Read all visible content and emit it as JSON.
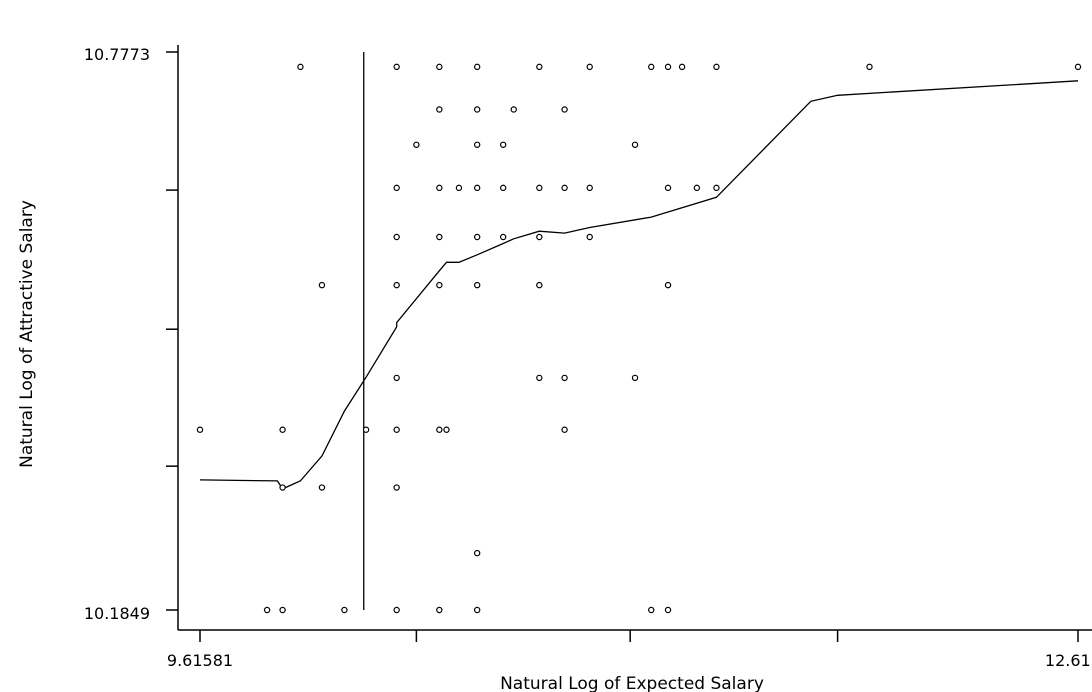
{
  "chart_data": {
    "type": "scatter",
    "title": "",
    "xlabel": "Natural Log of Expected Salary",
    "ylabel": "Natural Log of Attractive Salary",
    "xlim": [
      9.61581,
      12.6115
    ],
    "ylim": [
      10.1849,
      10.7773
    ],
    "x_tick_labels": [
      "9.61581",
      "12.6115"
    ],
    "y_tick_labels": [
      "10.7773",
      "10.1849"
    ],
    "x_minor_ticks": [
      10.3541,
      11.0836,
      11.7913
    ],
    "y_minor_ticks": [
      10.6307,
      10.483,
      10.3376
    ],
    "grid": false,
    "reference_line_x": 10.1745,
    "points": [
      {
        "x": 9.6158,
        "y": 10.3763
      },
      {
        "x": 9.8976,
        "y": 10.3763
      },
      {
        "x": 9.8976,
        "y": 10.3149
      },
      {
        "x": 9.8976,
        "y": 10.1849
      },
      {
        "x": 9.9585,
        "y": 10.7615
      },
      {
        "x": 10.0319,
        "y": 10.5298
      },
      {
        "x": 10.0319,
        "y": 10.3149
      },
      {
        "x": 10.1085,
        "y": 10.1849
      },
      {
        "x": 9.8447,
        "y": 10.1849
      },
      {
        "x": 10.1824,
        "y": 10.3763
      },
      {
        "x": 10.2868,
        "y": 10.7615
      },
      {
        "x": 10.2868,
        "y": 10.6331
      },
      {
        "x": 10.2868,
        "y": 10.5809
      },
      {
        "x": 10.2868,
        "y": 10.5298
      },
      {
        "x": 10.2868,
        "y": 10.4313
      },
      {
        "x": 10.2868,
        "y": 10.3763
      },
      {
        "x": 10.2868,
        "y": 10.3149
      },
      {
        "x": 10.2868,
        "y": 10.1849
      },
      {
        "x": 10.3541,
        "y": 10.6788
      },
      {
        "x": 10.4324,
        "y": 10.7615
      },
      {
        "x": 10.4324,
        "y": 10.7163
      },
      {
        "x": 10.4324,
        "y": 10.6331
      },
      {
        "x": 10.4324,
        "y": 10.5809
      },
      {
        "x": 10.4324,
        "y": 10.5298
      },
      {
        "x": 10.4324,
        "y": 10.3763
      },
      {
        "x": 10.4324,
        "y": 10.1849
      },
      {
        "x": 10.4568,
        "y": 10.3763
      },
      {
        "x": 10.4993,
        "y": 10.6331
      },
      {
        "x": 10.5615,
        "y": 10.7615
      },
      {
        "x": 10.5615,
        "y": 10.7163
      },
      {
        "x": 10.5615,
        "y": 10.6788
      },
      {
        "x": 10.5615,
        "y": 10.6331
      },
      {
        "x": 10.5615,
        "y": 10.5809
      },
      {
        "x": 10.5615,
        "y": 10.5298
      },
      {
        "x": 10.5615,
        "y": 10.2453
      },
      {
        "x": 10.5615,
        "y": 10.1849
      },
      {
        "x": 10.6863,
        "y": 10.7163
      },
      {
        "x": 10.6502,
        "y": 10.6788
      },
      {
        "x": 10.6502,
        "y": 10.6331
      },
      {
        "x": 10.6502,
        "y": 10.5809
      },
      {
        "x": 10.7736,
        "y": 10.7615
      },
      {
        "x": 10.7736,
        "y": 10.6331
      },
      {
        "x": 10.7736,
        "y": 10.5809
      },
      {
        "x": 10.7736,
        "y": 10.5298
      },
      {
        "x": 10.7736,
        "y": 10.4313
      },
      {
        "x": 10.8597,
        "y": 10.7163
      },
      {
        "x": 10.8597,
        "y": 10.6331
      },
      {
        "x": 10.8597,
        "y": 10.4313
      },
      {
        "x": 10.8597,
        "y": 10.3763
      },
      {
        "x": 10.9455,
        "y": 10.7615
      },
      {
        "x": 10.9455,
        "y": 10.6331
      },
      {
        "x": 10.9455,
        "y": 10.5809
      },
      {
        "x": 11.1001,
        "y": 10.6788
      },
      {
        "x": 11.1001,
        "y": 10.4313
      },
      {
        "x": 11.1554,
        "y": 10.7615
      },
      {
        "x": 11.1554,
        "y": 10.1849
      },
      {
        "x": 11.2127,
        "y": 10.7615
      },
      {
        "x": 11.2127,
        "y": 10.6331
      },
      {
        "x": 11.2127,
        "y": 10.5298
      },
      {
        "x": 11.2127,
        "y": 10.1849
      },
      {
        "x": 11.2606,
        "y": 10.7615
      },
      {
        "x": 11.3111,
        "y": 10.6331
      },
      {
        "x": 11.3779,
        "y": 10.7615
      },
      {
        "x": 11.3779,
        "y": 10.6331
      },
      {
        "x": 11.9001,
        "y": 10.7615
      },
      {
        "x": 12.6115,
        "y": 10.7615
      }
    ],
    "smooth_line": [
      {
        "x": 9.6158,
        "y": 10.323
      },
      {
        "x": 9.88,
        "y": 10.322
      },
      {
        "x": 9.8976,
        "y": 10.3135
      },
      {
        "x": 9.9585,
        "y": 10.322
      },
      {
        "x": 10.0319,
        "y": 10.3485
      },
      {
        "x": 10.1085,
        "y": 10.3961
      },
      {
        "x": 10.1824,
        "y": 10.432
      },
      {
        "x": 10.2868,
        "y": 10.4856
      },
      {
        "x": 10.2868,
        "y": 10.49
      },
      {
        "x": 10.4324,
        "y": 10.545
      },
      {
        "x": 10.4568,
        "y": 10.554
      },
      {
        "x": 10.4993,
        "y": 10.554
      },
      {
        "x": 10.5615,
        "y": 10.562
      },
      {
        "x": 10.6502,
        "y": 10.574
      },
      {
        "x": 10.6863,
        "y": 10.579
      },
      {
        "x": 10.7736,
        "y": 10.587
      },
      {
        "x": 10.8597,
        "y": 10.585
      },
      {
        "x": 10.9455,
        "y": 10.591
      },
      {
        "x": 11.1554,
        "y": 10.602
      },
      {
        "x": 11.3779,
        "y": 10.623
      },
      {
        "x": 11.6999,
        "y": 10.725
      },
      {
        "x": 11.7913,
        "y": 10.7313
      },
      {
        "x": 12.6115,
        "y": 10.7467
      }
    ]
  }
}
